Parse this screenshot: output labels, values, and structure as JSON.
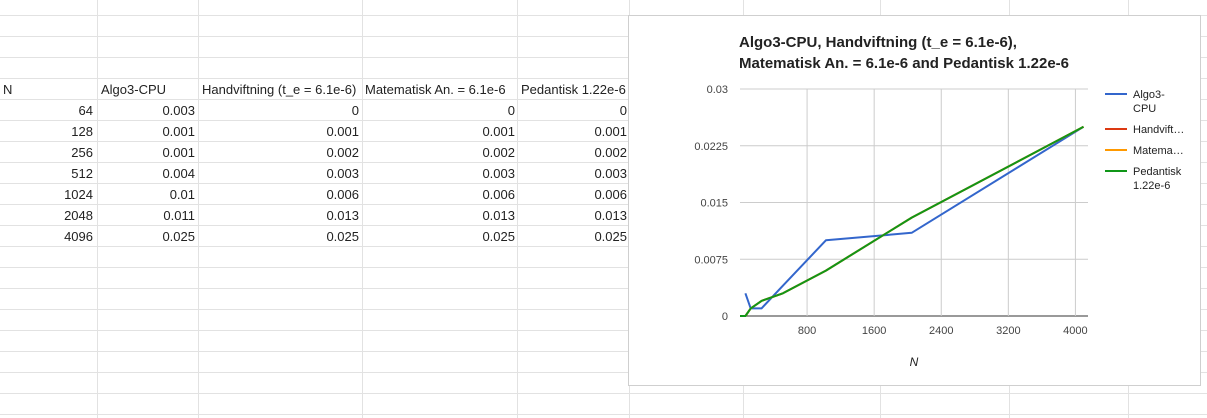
{
  "sheet": {
    "headers": [
      "N",
      "Algo3-CPU",
      "Handviftning (t_e = 6.1e-6)",
      "Matematisk An. = 6.1e-6",
      "Pedantisk 1.22e-6"
    ],
    "rows": [
      [
        "64",
        "0.003",
        "0",
        "0",
        "0"
      ],
      [
        "128",
        "0.001",
        "0.001",
        "0.001",
        "0.001"
      ],
      [
        "256",
        "0.001",
        "0.002",
        "0.002",
        "0.002"
      ],
      [
        "512",
        "0.004",
        "0.003",
        "0.003",
        "0.003"
      ],
      [
        "1024",
        "0.01",
        "0.006",
        "0.006",
        "0.006"
      ],
      [
        "2048",
        "0.011",
        "0.013",
        "0.013",
        "0.013"
      ],
      [
        "4096",
        "0.025",
        "0.025",
        "0.025",
        "0.025"
      ]
    ]
  },
  "chart_data": {
    "type": "line",
    "title_line1": "Algo3-CPU, Handviftning (t_e = 6.1e-6),",
    "title_line2": "Matematisk An. = 6.1e-6 and Pedantisk 1.22e-6",
    "xlabel": "N",
    "ylabel": "",
    "x": [
      0,
      64,
      128,
      256,
      512,
      1024,
      2048,
      4096
    ],
    "xlim": [
      0,
      4150
    ],
    "ylim": [
      0,
      0.03
    ],
    "xticks": [
      800,
      1600,
      2400,
      3200,
      4000
    ],
    "xtick_labels": [
      "800",
      "1600",
      "2400",
      "3200",
      "4000"
    ],
    "yticks": [
      0,
      0.0075,
      0.015,
      0.0225,
      0.03
    ],
    "ytick_labels": [
      "0",
      "0.0075",
      "0.015",
      "0.0225",
      "0.03"
    ],
    "grid": true,
    "legend_position": "right",
    "series": [
      {
        "name": "Algo3-CPU",
        "legend_lines": [
          "Algo3-",
          "CPU"
        ],
        "color": "#3366cc",
        "x": [
          64,
          128,
          256,
          512,
          1024,
          2048,
          4096
        ],
        "values": [
          0.003,
          0.001,
          0.001,
          0.004,
          0.01,
          0.011,
          0.025
        ]
      },
      {
        "name": "Handviftning (t_e = 6.1e-6)",
        "legend_lines": [
          "Handvift…"
        ],
        "color": "#dc3912",
        "x": [
          0,
          64,
          128,
          256,
          512,
          1024,
          2048,
          4096
        ],
        "values": [
          0,
          0,
          0.001,
          0.002,
          0.003,
          0.006,
          0.013,
          0.025
        ]
      },
      {
        "name": "Matematisk An. = 6.1e-6",
        "legend_lines": [
          "Matema…"
        ],
        "color": "#ff9900",
        "x": [
          0,
          64,
          128,
          256,
          512,
          1024,
          2048,
          4096
        ],
        "values": [
          0,
          0,
          0.001,
          0.002,
          0.003,
          0.006,
          0.013,
          0.025
        ]
      },
      {
        "name": "Pedantisk 1.22e-6",
        "legend_lines": [
          "Pedantisk",
          "1.22e-6"
        ],
        "color": "#109618",
        "x": [
          0,
          64,
          128,
          256,
          512,
          1024,
          2048,
          4096
        ],
        "values": [
          0,
          0,
          0.001,
          0.002,
          0.003,
          0.006,
          0.013,
          0.025
        ]
      }
    ]
  }
}
